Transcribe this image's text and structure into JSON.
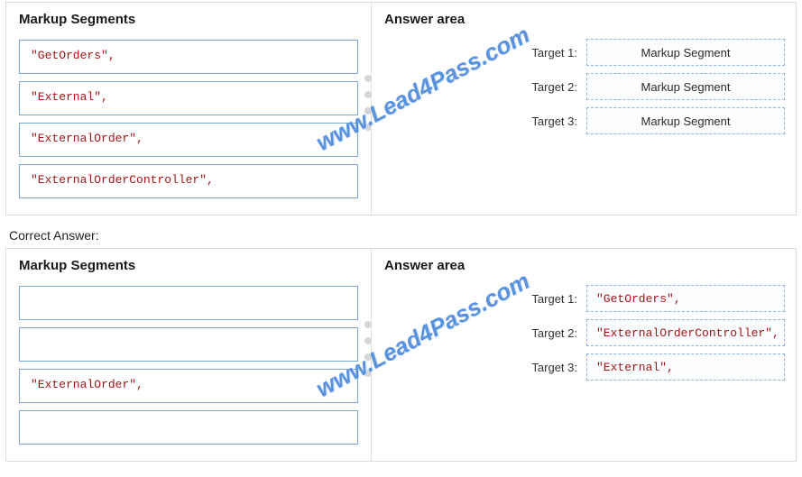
{
  "correct_answer_label": "Correct Answer:",
  "watermark_text": "www.Lead4Pass.com",
  "panels": {
    "question": {
      "left_title": "Markup Segments",
      "right_title": "Answer area",
      "segments": [
        "\"GetOrders\",",
        "\"External\",",
        "\"ExternalOrder\",",
        "\"ExternalOrderController\","
      ],
      "targets": [
        {
          "label": "Target 1:",
          "value": "Markup Segment",
          "filled": false
        },
        {
          "label": "Target 2:",
          "value": "Markup Segment",
          "filled": false
        },
        {
          "label": "Target 3:",
          "value": "Markup Segment",
          "filled": false
        }
      ]
    },
    "answer": {
      "left_title": "Markup Segments",
      "right_title": "Answer area",
      "segments": [
        "",
        "",
        "\"ExternalOrder\",",
        ""
      ],
      "targets": [
        {
          "label": "Target 1:",
          "value": "\"GetOrders\",",
          "filled": true
        },
        {
          "label": "Target 2:",
          "value": "\"ExternalOrderController\",",
          "filled": true
        },
        {
          "label": "Target 3:",
          "value": "\"External\",",
          "filled": true
        }
      ]
    }
  }
}
